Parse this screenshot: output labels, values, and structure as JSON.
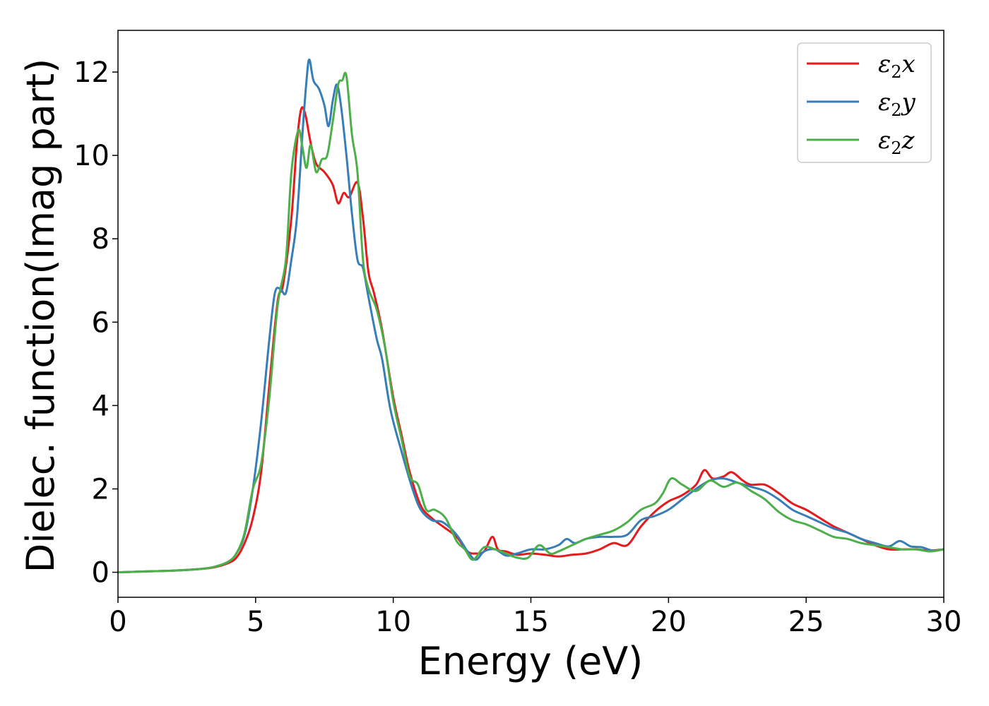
{
  "chart_data": {
    "type": "line",
    "title": "",
    "xlabel": "Energy (eV)",
    "ylabel": "Dielec. function(Imag part)",
    "xlim": [
      0,
      30
    ],
    "ylim": [
      -0.6,
      13.0
    ],
    "xticks": [
      0,
      5,
      10,
      15,
      20,
      25,
      30
    ],
    "yticks": [
      0,
      2,
      4,
      6,
      8,
      10,
      12
    ],
    "grid": false,
    "legend_position": "top-right",
    "series": [
      {
        "name": "x",
        "legend_main": "ε",
        "legend_sub": "2",
        "legend_var": "x",
        "color": "#e41a1c",
        "points": [
          [
            0,
            0
          ],
          [
            1,
            0.02
          ],
          [
            2,
            0.04
          ],
          [
            3,
            0.08
          ],
          [
            3.5,
            0.12
          ],
          [
            4,
            0.22
          ],
          [
            4.3,
            0.35
          ],
          [
            4.6,
            0.7
          ],
          [
            4.9,
            1.3
          ],
          [
            5.2,
            2.4
          ],
          [
            5.5,
            4.5
          ],
          [
            5.8,
            6.5
          ],
          [
            6.0,
            6.9
          ],
          [
            6.3,
            8.5
          ],
          [
            6.5,
            10.3
          ],
          [
            6.65,
            11.1
          ],
          [
            6.8,
            11.0
          ],
          [
            7.0,
            10.3
          ],
          [
            7.2,
            9.8
          ],
          [
            7.5,
            9.6
          ],
          [
            7.8,
            9.3
          ],
          [
            8.0,
            8.85
          ],
          [
            8.2,
            9.1
          ],
          [
            8.4,
            9.0
          ],
          [
            8.7,
            9.35
          ],
          [
            8.9,
            8.5
          ],
          [
            9.1,
            7.2
          ],
          [
            9.3,
            6.7
          ],
          [
            9.6,
            5.8
          ],
          [
            10.0,
            4.2
          ],
          [
            10.3,
            3.3
          ],
          [
            10.6,
            2.4
          ],
          [
            11.0,
            1.6
          ],
          [
            11.4,
            1.3
          ],
          [
            11.8,
            1.1
          ],
          [
            12.3,
            0.85
          ],
          [
            12.7,
            0.5
          ],
          [
            13.0,
            0.45
          ],
          [
            13.3,
            0.5
          ],
          [
            13.6,
            0.85
          ],
          [
            13.8,
            0.55
          ],
          [
            14.1,
            0.5
          ],
          [
            14.5,
            0.42
          ],
          [
            15.0,
            0.45
          ],
          [
            15.5,
            0.42
          ],
          [
            16.0,
            0.38
          ],
          [
            16.5,
            0.42
          ],
          [
            17.0,
            0.45
          ],
          [
            17.5,
            0.55
          ],
          [
            18.0,
            0.7
          ],
          [
            18.5,
            0.65
          ],
          [
            19.0,
            1.1
          ],
          [
            19.5,
            1.45
          ],
          [
            20.0,
            1.7
          ],
          [
            20.5,
            1.85
          ],
          [
            21.0,
            2.1
          ],
          [
            21.3,
            2.45
          ],
          [
            21.6,
            2.25
          ],
          [
            22.0,
            2.3
          ],
          [
            22.3,
            2.4
          ],
          [
            22.7,
            2.2
          ],
          [
            23.0,
            2.1
          ],
          [
            23.5,
            2.1
          ],
          [
            24.0,
            1.9
          ],
          [
            24.5,
            1.65
          ],
          [
            25.0,
            1.5
          ],
          [
            25.5,
            1.3
          ],
          [
            26.0,
            1.1
          ],
          [
            26.5,
            0.95
          ],
          [
            27.0,
            0.8
          ],
          [
            27.5,
            0.65
          ],
          [
            28.0,
            0.55
          ],
          [
            28.5,
            0.55
          ],
          [
            29.0,
            0.55
          ],
          [
            29.5,
            0.52
          ],
          [
            30.0,
            0.55
          ]
        ]
      },
      {
        "name": "y",
        "legend_main": "ε",
        "legend_sub": "2",
        "legend_var": "y",
        "color": "#377eb8",
        "points": [
          [
            0,
            0
          ],
          [
            1,
            0.02
          ],
          [
            2,
            0.04
          ],
          [
            3,
            0.08
          ],
          [
            3.5,
            0.13
          ],
          [
            4,
            0.25
          ],
          [
            4.3,
            0.45
          ],
          [
            4.6,
            0.9
          ],
          [
            4.9,
            2.0
          ],
          [
            5.2,
            3.6
          ],
          [
            5.5,
            5.6
          ],
          [
            5.7,
            6.7
          ],
          [
            5.9,
            6.8
          ],
          [
            6.1,
            6.7
          ],
          [
            6.3,
            7.5
          ],
          [
            6.5,
            8.5
          ],
          [
            6.7,
            10.5
          ],
          [
            6.85,
            11.8
          ],
          [
            6.95,
            12.3
          ],
          [
            7.1,
            11.8
          ],
          [
            7.3,
            11.6
          ],
          [
            7.5,
            11.2
          ],
          [
            7.65,
            10.7
          ],
          [
            7.8,
            11.3
          ],
          [
            7.95,
            11.7
          ],
          [
            8.1,
            11.2
          ],
          [
            8.3,
            10.0
          ],
          [
            8.5,
            8.6
          ],
          [
            8.7,
            7.5
          ],
          [
            8.9,
            7.3
          ],
          [
            9.1,
            6.6
          ],
          [
            9.4,
            5.6
          ],
          [
            9.6,
            5.1
          ],
          [
            9.9,
            3.9
          ],
          [
            10.3,
            2.9
          ],
          [
            10.7,
            2.0
          ],
          [
            11.0,
            1.5
          ],
          [
            11.4,
            1.25
          ],
          [
            11.8,
            1.2
          ],
          [
            12.3,
            0.9
          ],
          [
            12.7,
            0.5
          ],
          [
            13.0,
            0.3
          ],
          [
            13.3,
            0.5
          ],
          [
            13.7,
            0.55
          ],
          [
            14.1,
            0.4
          ],
          [
            14.5,
            0.45
          ],
          [
            15.0,
            0.55
          ],
          [
            15.5,
            0.55
          ],
          [
            16.0,
            0.65
          ],
          [
            16.3,
            0.8
          ],
          [
            16.6,
            0.7
          ],
          [
            17.0,
            0.8
          ],
          [
            17.5,
            0.85
          ],
          [
            18.0,
            0.85
          ],
          [
            18.5,
            0.9
          ],
          [
            19.0,
            1.25
          ],
          [
            19.5,
            1.35
          ],
          [
            20.0,
            1.5
          ],
          [
            20.5,
            1.75
          ],
          [
            21.0,
            2.0
          ],
          [
            21.5,
            2.2
          ],
          [
            22.0,
            2.25
          ],
          [
            22.5,
            2.15
          ],
          [
            23.0,
            2.05
          ],
          [
            23.5,
            1.95
          ],
          [
            24.0,
            1.75
          ],
          [
            24.5,
            1.5
          ],
          [
            25.0,
            1.35
          ],
          [
            25.5,
            1.2
          ],
          [
            26.0,
            1.05
          ],
          [
            26.5,
            0.95
          ],
          [
            27.0,
            0.8
          ],
          [
            27.5,
            0.7
          ],
          [
            28.0,
            0.62
          ],
          [
            28.4,
            0.75
          ],
          [
            28.8,
            0.62
          ],
          [
            29.2,
            0.6
          ],
          [
            29.6,
            0.52
          ],
          [
            30.0,
            0.55
          ]
        ]
      },
      {
        "name": "z",
        "legend_main": "ε",
        "legend_sub": "2",
        "legend_var": "z",
        "color": "#4daf4a",
        "points": [
          [
            0,
            0
          ],
          [
            1,
            0.02
          ],
          [
            2,
            0.04
          ],
          [
            3,
            0.08
          ],
          [
            3.5,
            0.13
          ],
          [
            4,
            0.25
          ],
          [
            4.3,
            0.45
          ],
          [
            4.6,
            0.95
          ],
          [
            4.9,
            2.0
          ],
          [
            5.2,
            2.6
          ],
          [
            5.5,
            4.2
          ],
          [
            5.8,
            6.4
          ],
          [
            6.1,
            7.5
          ],
          [
            6.3,
            9.6
          ],
          [
            6.55,
            10.6
          ],
          [
            6.7,
            10.2
          ],
          [
            6.85,
            9.7
          ],
          [
            7.0,
            10.25
          ],
          [
            7.2,
            9.6
          ],
          [
            7.4,
            9.9
          ],
          [
            7.6,
            10.0
          ],
          [
            7.8,
            10.8
          ],
          [
            8.0,
            11.7
          ],
          [
            8.15,
            11.8
          ],
          [
            8.3,
            11.9
          ],
          [
            8.5,
            10.5
          ],
          [
            8.7,
            9.6
          ],
          [
            8.9,
            7.5
          ],
          [
            9.1,
            6.8
          ],
          [
            9.4,
            6.3
          ],
          [
            9.7,
            5.4
          ],
          [
            10.0,
            4.1
          ],
          [
            10.3,
            3.2
          ],
          [
            10.6,
            2.3
          ],
          [
            10.9,
            2.1
          ],
          [
            11.2,
            1.5
          ],
          [
            11.5,
            1.5
          ],
          [
            11.9,
            1.3
          ],
          [
            12.3,
            0.75
          ],
          [
            12.6,
            0.55
          ],
          [
            12.9,
            0.3
          ],
          [
            13.3,
            0.6
          ],
          [
            13.7,
            0.55
          ],
          [
            14.1,
            0.45
          ],
          [
            14.5,
            0.35
          ],
          [
            14.9,
            0.35
          ],
          [
            15.3,
            0.65
          ],
          [
            15.7,
            0.45
          ],
          [
            16.0,
            0.5
          ],
          [
            16.5,
            0.65
          ],
          [
            17.0,
            0.8
          ],
          [
            17.5,
            0.9
          ],
          [
            18.0,
            1.0
          ],
          [
            18.5,
            1.2
          ],
          [
            19.0,
            1.5
          ],
          [
            19.5,
            1.65
          ],
          [
            19.8,
            1.9
          ],
          [
            20.1,
            2.25
          ],
          [
            20.5,
            2.1
          ],
          [
            21.0,
            1.95
          ],
          [
            21.5,
            2.2
          ],
          [
            22.0,
            2.05
          ],
          [
            22.5,
            2.15
          ],
          [
            23.0,
            1.95
          ],
          [
            23.5,
            1.75
          ],
          [
            24.0,
            1.45
          ],
          [
            24.5,
            1.25
          ],
          [
            25.0,
            1.15
          ],
          [
            25.5,
            1.0
          ],
          [
            26.0,
            0.85
          ],
          [
            26.5,
            0.8
          ],
          [
            27.0,
            0.7
          ],
          [
            27.5,
            0.65
          ],
          [
            28.0,
            0.6
          ],
          [
            28.5,
            0.55
          ],
          [
            29.0,
            0.55
          ],
          [
            29.5,
            0.5
          ],
          [
            30.0,
            0.55
          ]
        ]
      }
    ]
  }
}
